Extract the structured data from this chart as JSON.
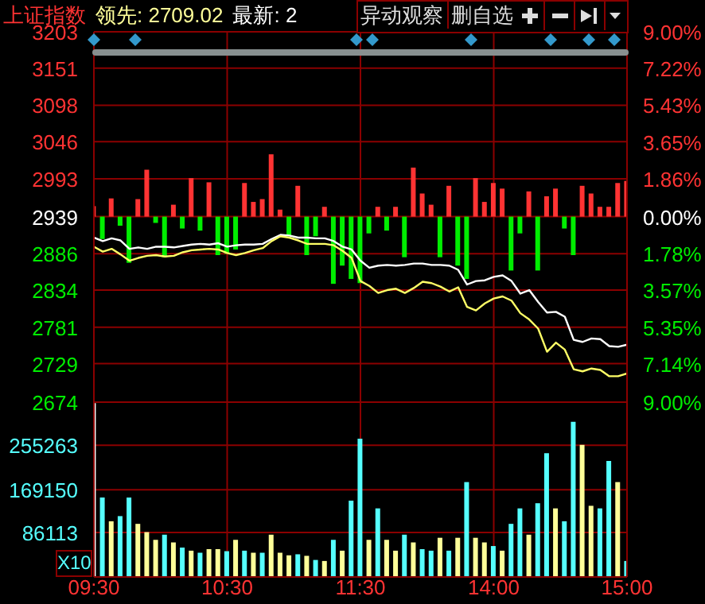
{
  "chart_data": [
    {
      "type": "line",
      "title": "上证指数",
      "annotations": [
        "领先: 2709.02",
        "最新: 2",
        "异动观察",
        "删自选"
      ],
      "categories": [
        null,
        null,
        null,
        null,
        null,
        null,
        null,
        null,
        null,
        null,
        null,
        null,
        null,
        null,
        null,
        null,
        null,
        null,
        null,
        null,
        null,
        null,
        null,
        null,
        null,
        null,
        null,
        null,
        null,
        null,
        null,
        null,
        null,
        null,
        null,
        null,
        null,
        null,
        null,
        null,
        null,
        null,
        null,
        null,
        null,
        null,
        null,
        null,
        null,
        null,
        null,
        null,
        null,
        null,
        null,
        null,
        null,
        null,
        null,
        null,
        null
      ],
      "ylim": [
        2674,
        3203
      ],
      "yticks": [
        3203,
        3151,
        3098,
        3046,
        2993,
        2939,
        2886,
        2834,
        2781,
        2729,
        2674
      ],
      "y2lim": [
        -9,
        9
      ],
      "y2ticks": [
        {
          "value": 9,
          "label": "9.00%"
        },
        {
          "value": 7.22,
          "label": "7.22%"
        },
        {
          "value": 5.43,
          "label": "5.43%"
        },
        {
          "value": 3.65,
          "label": "3.65%"
        },
        {
          "value": 1.86,
          "label": "1.86%"
        },
        {
          "value": 0,
          "label": "0.00%"
        },
        {
          "value": -1.78,
          "label": "1.78%"
        },
        {
          "value": -3.57,
          "label": "3.57%"
        },
        {
          "value": -5.35,
          "label": "5.35%"
        },
        {
          "value": -7.14,
          "label": "7.14%"
        },
        {
          "value": -9,
          "label": "9.00%"
        }
      ],
      "grid": true,
      "tick_labels": "y",
      "marker": "none",
      "series": [
        {
          "type": "bar",
          "base": [
            2939,
            2939,
            2939,
            2939,
            2939,
            2939,
            2939,
            2939,
            2939,
            2939,
            2939,
            2939,
            2939,
            2939,
            2939,
            2939,
            2939,
            2939,
            2939,
            2939,
            2939,
            2939,
            2939,
            2939,
            2939,
            2939,
            2939,
            2939,
            2939,
            2939,
            2939,
            2939,
            2939,
            2939,
            2939,
            2939,
            2939,
            2939,
            2939,
            2939,
            2939,
            2939,
            2939,
            2939,
            2939,
            2939,
            2939,
            2939,
            2939,
            2939,
            2939,
            2939,
            2939,
            2939,
            2939,
            2939,
            2939,
            2939,
            2939,
            2939,
            2939
          ],
          "values": [
            15,
            -32,
            26,
            -13,
            -66,
            25,
            67,
            -9,
            -58,
            17,
            -17,
            55,
            -20,
            49,
            -55,
            -53,
            -47,
            48,
            21,
            25,
            89,
            10,
            -28,
            44,
            -55,
            -28,
            14,
            -96,
            -70,
            -89,
            -95,
            -24,
            14,
            -20,
            14,
            -58,
            70,
            33,
            17,
            -58,
            44,
            -70,
            -89,
            55,
            21,
            48,
            40,
            -77,
            -24,
            36,
            -77,
            29,
            40,
            -17,
            -55,
            44,
            33,
            14,
            14,
            48,
            51
          ],
          "colors": [
            "#ff3333",
            "#00ee00",
            "#ff3333",
            "#00ee00",
            "#00ee00",
            "#ff3333",
            "#ff3333",
            "#00ee00",
            "#00ee00",
            "#ff3333",
            "#00ee00",
            "#ff3333",
            "#00ee00",
            "#ff3333",
            "#00ee00",
            "#00ee00",
            "#00ee00",
            "#ff3333",
            "#ff3333",
            "#ff3333",
            "#ff3333",
            "#ff3333",
            "#00ee00",
            "#ff3333",
            "#00ee00",
            "#00ee00",
            "#ff3333",
            "#00ee00",
            "#00ee00",
            "#00ee00",
            "#00ee00",
            "#00ee00",
            "#ff3333",
            "#00ee00",
            "#ff3333",
            "#00ee00",
            "#ff3333",
            "#ff3333",
            "#ff3333",
            "#00ee00",
            "#ff3333",
            "#00ee00",
            "#00ee00",
            "#ff3333",
            "#ff3333",
            "#ff3333",
            "#ff3333",
            "#00ee00",
            "#00ee00",
            "#ff3333",
            "#00ee00",
            "#ff3333",
            "#ff3333",
            "#00ee00",
            "#00ee00",
            "#ff3333",
            "#ff3333",
            "#ff3333",
            "#ff3333",
            "#ff3333",
            "#ff3333"
          ]
        },
        {
          "color": "#ffffff",
          "values": [
            2909,
            2904,
            2908,
            2905,
            2893,
            2895,
            2893,
            2896,
            2896,
            2895,
            2897,
            2899,
            2900,
            2899,
            2901,
            2896,
            2898,
            2899,
            2899,
            2900,
            2907,
            2913,
            2912,
            2909,
            2909,
            2908,
            2908,
            2904,
            2896,
            2892,
            2876,
            2866,
            2869,
            2870,
            2869,
            2870,
            2872,
            2872,
            2870,
            2870,
            2869,
            2863,
            2842,
            2847,
            2848,
            2853,
            2855,
            2847,
            2829,
            2834,
            2817,
            2802,
            2803,
            2796,
            2763,
            2760,
            2765,
            2764,
            2754,
            2753,
            2756
          ]
        },
        {
          "color": "#ffff66",
          "values": [
            2896,
            2889,
            2893,
            2885,
            2876,
            2880,
            2883,
            2884,
            2882,
            2883,
            2888,
            2891,
            2892,
            2893,
            2892,
            2887,
            2884,
            2887,
            2891,
            2894,
            2904,
            2911,
            2909,
            2905,
            2900,
            2900,
            2900,
            2898,
            2890,
            2880,
            2847,
            2840,
            2830,
            2834,
            2836,
            2830,
            2837,
            2846,
            2844,
            2839,
            2832,
            2838,
            2810,
            2805,
            2815,
            2822,
            2825,
            2819,
            2801,
            2792,
            2779,
            2746,
            2759,
            2749,
            2721,
            2718,
            2722,
            2720,
            2711,
            2711,
            2715
          ]
        }
      ]
    },
    {
      "type": "bar",
      "annotations": [
        "X10"
      ],
      "categories": [
        "09:30",
        null,
        null,
        null,
        null,
        null,
        null,
        null,
        null,
        null,
        null,
        null,
        null,
        null,
        null,
        "10:30",
        null,
        null,
        null,
        null,
        null,
        null,
        null,
        null,
        null,
        null,
        null,
        null,
        null,
        null,
        "11:30",
        null,
        null,
        null,
        null,
        null,
        null,
        null,
        null,
        null,
        null,
        null,
        null,
        null,
        null,
        "14:00",
        null,
        null,
        null,
        null,
        null,
        null,
        null,
        null,
        null,
        null,
        null,
        null,
        null,
        null,
        "15:00"
      ],
      "values": [
        337000,
        154000,
        108000,
        118000,
        154000,
        103000,
        87000,
        72000,
        82000,
        67000,
        57000,
        51000,
        47000,
        54000,
        54000,
        50000,
        72000,
        51000,
        47000,
        47000,
        82000,
        47000,
        42000,
        44000,
        41000,
        33000,
        31000,
        72000,
        51000,
        148000,
        268000,
        72000,
        133000,
        72000,
        51000,
        82000,
        67000,
        54000,
        51000,
        76000,
        51000,
        76000,
        184000,
        76000,
        67000,
        60000,
        51000,
        103000,
        133000,
        82000,
        143000,
        240000,
        133000,
        108000,
        301000,
        256000,
        138000,
        133000,
        225000,
        184000,
        31000
      ],
      "colors": [
        "#ffffff",
        "#55ffff",
        "#ffff99",
        "#55ffff",
        "#55ffff",
        "#ffff99",
        "#ffff99",
        "#ffff99",
        "#55ffff",
        "#ffff99",
        "#55ffff",
        "#ffff99",
        "#55ffff",
        "#ffff99",
        "#ffff99",
        "#55ffff",
        "#ffff99",
        "#55ffff",
        "#ffff99",
        "#55ffff",
        "#ffff99",
        "#ffff99",
        "#ffff99",
        "#55ffff",
        "#ffff99",
        "#55ffff",
        "#ffff99",
        "#55ffff",
        "#ffff99",
        "#55ffff",
        "#55ffff",
        "#ffff99",
        "#55ffff",
        "#ffff99",
        "#ffff99",
        "#55ffff",
        "#ffff99",
        "#55ffff",
        "#55ffff",
        "#ffff99",
        "#55ffff",
        "#ffff99",
        "#55ffff",
        "#ffff99",
        "#ffff99",
        "#55ffff",
        "#ffff99",
        "#55ffff",
        "#55ffff",
        "#ffff99",
        "#55ffff",
        "#55ffff",
        "#ffff99",
        "#55ffff",
        "#55ffff",
        "#ffff99",
        "#ffff99",
        "#55ffff",
        "#55ffff",
        "#ffff99",
        "#55ffff"
      ],
      "ylim": [
        0,
        339000
      ],
      "yticks": [
        86113,
        169150,
        255263
      ],
      "grid": true
    }
  ]
}
